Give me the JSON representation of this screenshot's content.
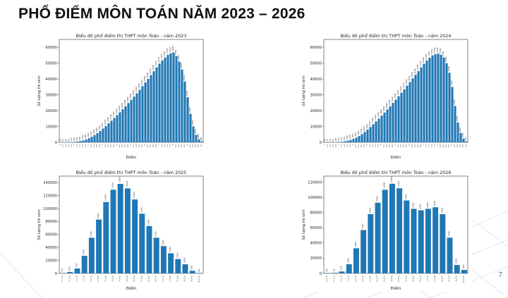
{
  "slide": {
    "title": "PHỔ ĐIỂM MÔN TOÁN NĂM 2023 – 2026",
    "page_number": "7"
  },
  "chart_data": [
    {
      "type": "bar",
      "title": "Biểu đồ phổ điểm thi THPT môn Toán - năm 2023",
      "xlabel": "Điểm",
      "ylabel": "Số lượng thí sinh",
      "ylim": [
        0,
        65000
      ],
      "yticks": [
        0,
        10000,
        20000,
        30000,
        40000,
        50000,
        60000
      ],
      "categories": [
        "0",
        "0.2",
        "0.4",
        "0.6",
        "0.8",
        "1",
        "1.2",
        "1.4",
        "1.6",
        "1.8",
        "2",
        "2.2",
        "2.4",
        "2.6",
        "2.8",
        "3",
        "3.2",
        "3.4",
        "3.6",
        "3.8",
        "4",
        "4.2",
        "4.4",
        "4.6",
        "4.8",
        "5",
        "5.2",
        "5.4",
        "5.6",
        "5.8",
        "6",
        "6.2",
        "6.4",
        "6.6",
        "6.8",
        "7",
        "7.2",
        "7.4",
        "7.6",
        "7.8",
        "8",
        "8.2",
        "8.4",
        "8.6",
        "8.8",
        "9",
        "9.2",
        "9.4",
        "9.6",
        "9.8",
        "10"
      ],
      "values": [
        30,
        20,
        40,
        80,
        150,
        300,
        500,
        800,
        1200,
        1800,
        2600,
        3500,
        4600,
        5800,
        7200,
        8700,
        10300,
        12000,
        13700,
        15400,
        17200,
        19000,
        20900,
        22800,
        24800,
        26800,
        28900,
        31000,
        33200,
        35500,
        37800,
        40100,
        42500,
        44900,
        47300,
        49700,
        51800,
        53600,
        55300,
        56200,
        56800,
        54500,
        51000,
        46000,
        38500,
        28500,
        18000,
        10000,
        4800,
        2000,
        600
      ],
      "data_labels": [
        "30",
        "20",
        "40",
        "80",
        "150",
        "300",
        "500",
        "800",
        "1200",
        "1800",
        "2600",
        "3500",
        "4600",
        "5800",
        "7200",
        "8700",
        "10300",
        "12000",
        "13700",
        "15400",
        "17200",
        "19000",
        "20900",
        "22800",
        "24800",
        "26800",
        "28900",
        "31000",
        "33200",
        "35500",
        "37800",
        "40100",
        "42500",
        "44900",
        "47300",
        "49700",
        "51800",
        "53600",
        "55300",
        "56200",
        "56800",
        "54500",
        "51000",
        "46000",
        "38500",
        "28500",
        "18000",
        "10000",
        "4800",
        "2000",
        "600"
      ],
      "color": "#1f77b4"
    },
    {
      "type": "bar",
      "title": "Biểu đồ phổ điểm thi THPT môn Toán - năm 2024",
      "xlabel": "Điểm",
      "ylabel": "Số lượng thí sinh",
      "ylim": [
        0,
        65000
      ],
      "yticks": [
        0,
        10000,
        20000,
        30000,
        40000,
        50000,
        60000
      ],
      "categories": [
        "0",
        "0.2",
        "0.4",
        "0.6",
        "0.8",
        "1",
        "1.2",
        "1.4",
        "1.6",
        "1.8",
        "2",
        "2.2",
        "2.4",
        "2.6",
        "2.8",
        "3",
        "3.2",
        "3.4",
        "3.6",
        "3.8",
        "4",
        "4.2",
        "4.4",
        "4.6",
        "4.8",
        "5",
        "5.2",
        "5.4",
        "5.6",
        "5.8",
        "6",
        "6.2",
        "6.4",
        "6.6",
        "6.8",
        "7",
        "7.2",
        "7.4",
        "7.6",
        "7.8",
        "8",
        "8.2",
        "8.4",
        "8.6",
        "8.8",
        "9",
        "9.2",
        "9.4",
        "9.6",
        "9.8",
        "10"
      ],
      "values": [
        20,
        15,
        30,
        60,
        120,
        250,
        400,
        650,
        1000,
        1500,
        2200,
        3000,
        4000,
        5200,
        6600,
        8100,
        9700,
        11400,
        13200,
        15000,
        16900,
        18800,
        20800,
        22800,
        24900,
        27000,
        29100,
        31300,
        33500,
        35800,
        38100,
        40400,
        42700,
        45000,
        47300,
        49600,
        51700,
        53400,
        54900,
        55700,
        56000,
        55300,
        53500,
        50000,
        44000,
        35000,
        23000,
        12500,
        6000,
        2300,
        600
      ],
      "data_labels": [
        "20",
        "15",
        "30",
        "60",
        "120",
        "250",
        "400",
        "650",
        "1000",
        "1500",
        "2200",
        "3000",
        "4000",
        "5200",
        "6600",
        "8100",
        "9700",
        "11400",
        "13200",
        "15000",
        "16900",
        "18800",
        "20800",
        "22800",
        "24900",
        "27000",
        "29100",
        "31300",
        "33500",
        "35800",
        "38100",
        "40400",
        "42700",
        "45000",
        "47300",
        "49600",
        "51700",
        "53400",
        "54900",
        "55700",
        "56000",
        "55300",
        "53500",
        "50000",
        "44000",
        "35000",
        "23000",
        "12500",
        "6000",
        "2300",
        "600"
      ],
      "color": "#1f77b4"
    },
    {
      "type": "bar",
      "title": "Biểu đồ phổ điểm thi THPT môn Toán - năm 2025",
      "xlabel": "Điểm",
      "ylabel": "Số lượng thí sinh",
      "ylim": [
        0,
        150000
      ],
      "yticks": [
        0,
        20000,
        40000,
        60000,
        80000,
        100000,
        120000,
        140000
      ],
      "categories": [
        "[0,0.5)",
        "[0.5,1)",
        "[1,1.5)",
        "[1.5,2)",
        "[2,2.5)",
        "[2.5,3)",
        "[3,3.5)",
        "[3.5,4)",
        "[4,4.5)",
        "[4.5,5)",
        "[5,5.5)",
        "[5.5,6)",
        "[6,6.5)",
        "[6.5,7)",
        "[7,7.5)",
        "[7.5,8)",
        "[8,8.5)",
        "[8.5,9)",
        "[9,9.5)",
        "[9.5,10]"
      ],
      "values": [
        500,
        2000,
        7500,
        27000,
        55000,
        83000,
        110000,
        129000,
        138000,
        131000,
        114000,
        92000,
        73000,
        55000,
        42000,
        31000,
        22000,
        14000,
        4000,
        600
      ],
      "data_labels": [
        "500",
        "2000",
        "7500",
        "27000",
        "55000",
        "83000",
        "110000",
        "129000",
        "138000",
        "131000",
        "114000",
        "92000",
        "73000",
        "55000",
        "42000",
        "31000",
        "22000",
        "14000",
        "4000",
        "600"
      ],
      "color": "#1f77b4"
    },
    {
      "type": "bar",
      "title": "Biểu đồ phổ điểm thi THPT môn Toán - năm 2026",
      "xlabel": "Điểm",
      "ylabel": "Số lượng thí sinh",
      "ylim": [
        0,
        128000
      ],
      "yticks": [
        0,
        20000,
        40000,
        60000,
        80000,
        100000,
        120000
      ],
      "categories": [
        "[0,0.5)",
        "[0.5,1)",
        "[1,1.5)",
        "[1.5,2)",
        "[2,2.5)",
        "[2.5,3)",
        "[3,3.5)",
        "[3.5,4)",
        "[4,4.5)",
        "[4.5,5)",
        "[5,5.5)",
        "[5.5,6)",
        "[6,6.5)",
        "[6.5,7)",
        "[7,7.5)",
        "[7.5,8)",
        "[8,8.5)",
        "[8.5,9)",
        "[9,9.5)",
        "[9.5,10]"
      ],
      "values": [
        300,
        700,
        2500,
        12000,
        33000,
        57000,
        78000,
        93000,
        110000,
        118000,
        112000,
        96000,
        85000,
        83000,
        85000,
        87000,
        78000,
        47000,
        11000,
        4500
      ],
      "data_labels": [
        "300",
        "700",
        "2500",
        "12000",
        "33000",
        "57000",
        "78000",
        "93000",
        "110000",
        "118000",
        "112000",
        "96000",
        "85000",
        "83000",
        "85000",
        "87000",
        "78000",
        "47000",
        "11000",
        "4500"
      ],
      "color": "#1f77b4"
    }
  ]
}
